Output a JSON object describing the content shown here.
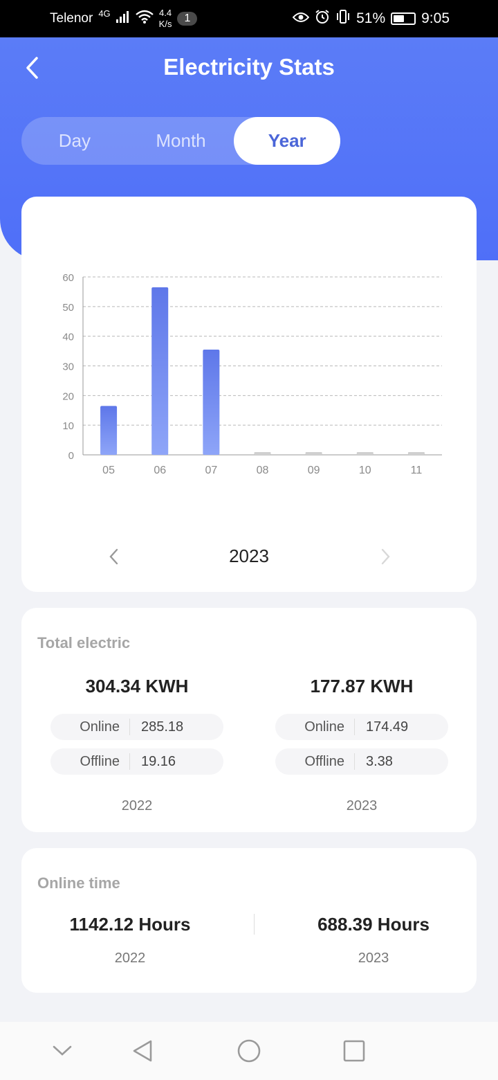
{
  "status_bar": {
    "carrier": "Telenor",
    "network": "4G",
    "speed_value": "4.4",
    "speed_unit": "K/s",
    "notification_count": "1",
    "battery_percent": "51%",
    "battery_level": 0.51,
    "time": "9:05"
  },
  "header": {
    "title": "Electricity Stats",
    "tabs": [
      {
        "label": "Day",
        "active": false
      },
      {
        "label": "Month",
        "active": false
      },
      {
        "label": "Year",
        "active": true
      }
    ]
  },
  "chart": {
    "year": "2023"
  },
  "chart_data": {
    "type": "bar",
    "categories": [
      "05",
      "06",
      "07",
      "08",
      "09",
      "10",
      "11"
    ],
    "values": [
      16.5,
      56.5,
      35.5,
      0,
      0,
      0,
      0
    ],
    "y_ticks": [
      "0",
      "10",
      "20",
      "30",
      "40",
      "50",
      "60"
    ],
    "ylim": [
      0,
      60
    ],
    "grid": true,
    "colors": {
      "bar_top": "#5e77e9",
      "bar_bottom": "#8ea5f8",
      "zero_bar": "#d0d0d0"
    }
  },
  "totals": {
    "title": "Total electric",
    "columns": [
      {
        "total": "304.34 KWH",
        "online_label": "Online",
        "online_value": "285.18",
        "offline_label": "Offline",
        "offline_value": "19.16",
        "year": "2022"
      },
      {
        "total": "177.87 KWH",
        "online_label": "Online",
        "online_value": "174.49",
        "offline_label": "Offline",
        "offline_value": "3.38",
        "year": "2023"
      }
    ]
  },
  "online_time": {
    "title": "Online time",
    "columns": [
      {
        "hours": "1142.12 Hours",
        "year": "2022"
      },
      {
        "hours": "688.39 Hours",
        "year": "2023"
      }
    ]
  },
  "colors": {
    "primary": "#4f6ff8",
    "active_tab_text": "#4b66d8",
    "background": "#f2f3f7"
  }
}
